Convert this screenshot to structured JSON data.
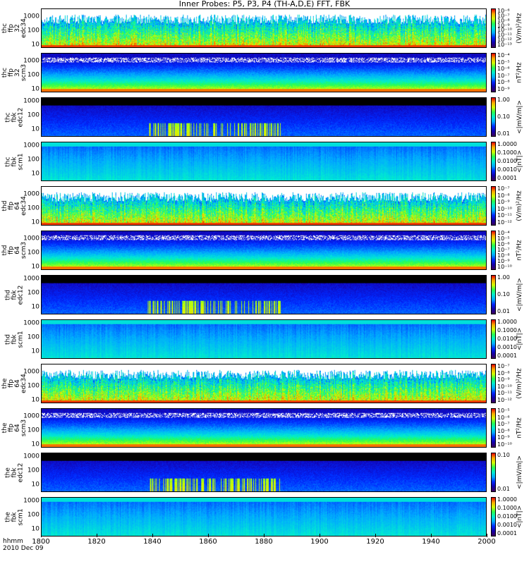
{
  "title": "Inner Probes: P5, P3, P4 (TH-A,D,E) FFT, FBK",
  "time_axis": {
    "hhmm_label": "hhmm",
    "date_label": "2010 Dec 09",
    "ticks": [
      "1800",
      "1820",
      "1840",
      "1860",
      "1880",
      "1900",
      "1920",
      "1940",
      "2000"
    ],
    "tick_minutes": [
      0,
      20,
      40,
      60,
      80,
      100,
      120,
      140,
      160
    ]
  },
  "chart_data": [
    {
      "type": "heatmap",
      "ylabel": "thc\nffp\n32\nedc34",
      "yticks": [
        "1000",
        "100",
        "10"
      ],
      "yscale": "log",
      "ylim": [
        6,
        4000
      ],
      "colorbar": {
        "ticks": [
          "10⁻⁶",
          "10⁻⁷",
          "10⁻⁸",
          "10⁻⁹",
          "10⁻¹⁰",
          "10⁻¹¹",
          "10⁻¹²",
          "10⁻¹³"
        ],
        "unit": "(V/m)²/Hz"
      }
    },
    {
      "type": "heatmap",
      "ylabel": "thc\nffp\n32\nscm3",
      "yticks": [
        "1000",
        "100",
        "10"
      ],
      "yscale": "log",
      "ylim": [
        6,
        4000
      ],
      "colorbar": {
        "ticks": [
          "10⁻⁴",
          "10⁻⁵",
          "10⁻⁶",
          "10⁻⁷",
          "10⁻⁸",
          "10⁻⁹"
        ],
        "unit": "nT²/Hz"
      }
    },
    {
      "type": "heatmap",
      "ylabel": "thc\nfbk\nedc12",
      "yticks": [
        "1000",
        "100",
        "10"
      ],
      "yscale": "log",
      "ylim": [
        3,
        2000
      ],
      "colorbar": {
        "ticks": [
          "1.00",
          "0.10",
          "0.01"
        ],
        "unit": "<|mV/m|>"
      }
    },
    {
      "type": "heatmap",
      "ylabel": "thc\nfbk\nscm1",
      "yticks": [
        "1000",
        "100",
        "10"
      ],
      "yscale": "log",
      "ylim": [
        3,
        2000
      ],
      "colorbar": {
        "ticks": [
          "1.0000",
          "0.1000",
          "0.0100",
          "0.0010",
          "0.0001"
        ],
        "unit": "<|nT|>"
      }
    },
    {
      "type": "heatmap",
      "ylabel": "thd\nffp\n64\nedc34",
      "yticks": [
        "1000",
        "100",
        "10"
      ],
      "yscale": "log",
      "ylim": [
        6,
        4000
      ],
      "colorbar": {
        "ticks": [
          "10⁻⁷",
          "10⁻⁸",
          "10⁻⁹",
          "10⁻¹⁰",
          "10⁻¹¹",
          "10⁻¹²"
        ],
        "unit": "(V/m)²/Hz"
      }
    },
    {
      "type": "heatmap",
      "ylabel": "thd\nffp\n64\nscm3",
      "yticks": [
        "1000",
        "100",
        "10"
      ],
      "yscale": "log",
      "ylim": [
        6,
        4000
      ],
      "colorbar": {
        "ticks": [
          "10⁻⁴",
          "10⁻⁵",
          "10⁻⁶",
          "10⁻⁷",
          "10⁻⁸",
          "10⁻⁹",
          "10⁻¹⁰"
        ],
        "unit": "nT²/Hz"
      }
    },
    {
      "type": "heatmap",
      "ylabel": "thd\nfbk\nedc12",
      "yticks": [
        "1000",
        "100",
        "10"
      ],
      "yscale": "log",
      "ylim": [
        3,
        2000
      ],
      "colorbar": {
        "ticks": [
          "1.00",
          "0.10",
          "0.01"
        ],
        "unit": "<|mV/m|>"
      }
    },
    {
      "type": "heatmap",
      "ylabel": "thd\nfbk\nscm1",
      "yticks": [
        "1000",
        "100",
        "10"
      ],
      "yscale": "log",
      "ylim": [
        3,
        2000
      ],
      "colorbar": {
        "ticks": [
          "1.0000",
          "0.1000",
          "0.0100",
          "0.0010",
          "0.0001"
        ],
        "unit": "<|nT|>"
      }
    },
    {
      "type": "heatmap",
      "ylabel": "the\nffp\n64\nedc34",
      "yticks": [
        "1000",
        "100",
        "10"
      ],
      "yscale": "log",
      "ylim": [
        6,
        4000
      ],
      "colorbar": {
        "ticks": [
          "10⁻⁷",
          "10⁻⁸",
          "10⁻⁹",
          "10⁻¹⁰",
          "10⁻¹¹",
          "10⁻¹²"
        ],
        "unit": "(V/m)²/Hz"
      }
    },
    {
      "type": "heatmap",
      "ylabel": "the\nffp\n64\nscm3",
      "yticks": [
        "1000",
        "100",
        "10"
      ],
      "yscale": "log",
      "ylim": [
        6,
        4000
      ],
      "colorbar": {
        "ticks": [
          "10⁻⁵",
          "10⁻⁶",
          "10⁻⁷",
          "10⁻⁸",
          "10⁻⁹",
          "10⁻¹⁰"
        ],
        "unit": "nT²/Hz"
      }
    },
    {
      "type": "heatmap",
      "ylabel": "the\nfbk\nedc12",
      "yticks": [
        "1000",
        "100",
        "10"
      ],
      "yscale": "log",
      "ylim": [
        3,
        2000
      ],
      "colorbar": {
        "ticks": [
          "0.10",
          "0.01"
        ],
        "unit": "<|mV/m|>"
      }
    },
    {
      "type": "heatmap",
      "ylabel": "the\nfbk\nscm1",
      "yticks": [
        "1000",
        "100",
        "10"
      ],
      "yscale": "log",
      "ylim": [
        3,
        2000
      ],
      "colorbar": {
        "ticks": [
          "1.0000",
          "0.1000",
          "0.0100",
          "0.0010",
          "0.0001"
        ],
        "unit": "<|nT|>"
      }
    }
  ]
}
